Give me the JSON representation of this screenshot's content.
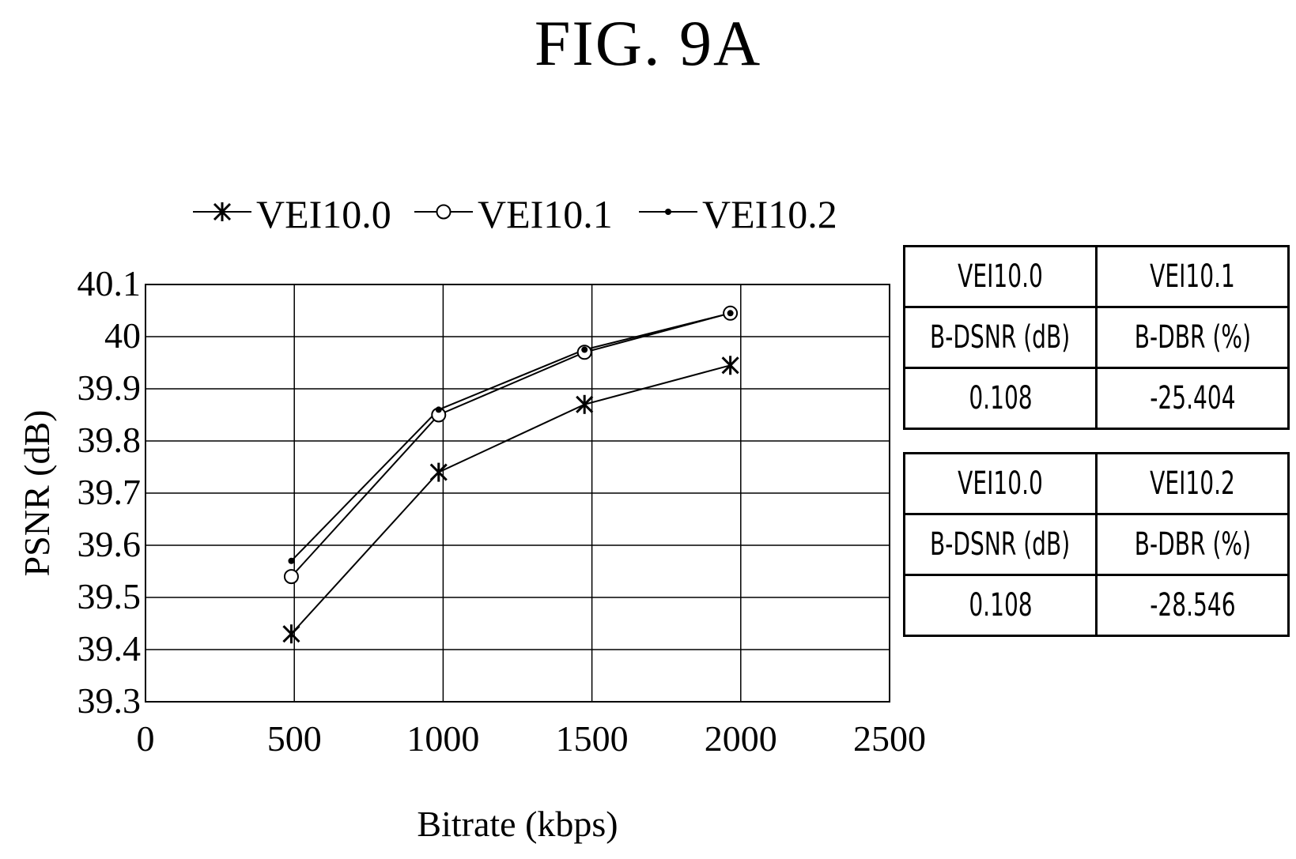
{
  "figure_title": "FIG. 9A",
  "chart_data": {
    "type": "line",
    "xlabel": "Bitrate (kbps)",
    "ylabel": "PSNR (dB)",
    "xlim": [
      0,
      2500
    ],
    "ylim": [
      39.3,
      40.1
    ],
    "x_ticks": [
      "0",
      "500",
      "1000",
      "1500",
      "2000",
      "2500"
    ],
    "y_ticks": [
      "39.3",
      "39.4",
      "39.5",
      "39.6",
      "39.7",
      "39.8",
      "39.9",
      "40",
      "40.1"
    ],
    "grid": true,
    "legend_position": "top",
    "series": [
      {
        "name": "VEI10.0",
        "marker": "asterisk",
        "x": [
          490,
          985,
          1475,
          1965
        ],
        "y": [
          39.43,
          39.74,
          39.87,
          39.945
        ]
      },
      {
        "name": "VEI10.1",
        "marker": "open-circle",
        "x": [
          490,
          985,
          1475,
          1965
        ],
        "y": [
          39.54,
          39.85,
          39.97,
          40.045
        ]
      },
      {
        "name": "VEI10.2",
        "marker": "dot",
        "x": [
          490,
          985,
          1475,
          1965
        ],
        "y": [
          39.57,
          39.86,
          39.975,
          40.045
        ]
      }
    ]
  },
  "tables": [
    {
      "header": [
        "VEI10.0",
        "VEI10.1"
      ],
      "metrics": [
        "B-DSNR (dB)",
        "B-DBR (%)"
      ],
      "values": [
        "0.108",
        "-25.404"
      ]
    },
    {
      "header": [
        "VEI10.0",
        "VEI10.2"
      ],
      "metrics": [
        "B-DSNR (dB)",
        "B-DBR (%)"
      ],
      "values": [
        "0.108",
        "-28.546"
      ]
    }
  ]
}
